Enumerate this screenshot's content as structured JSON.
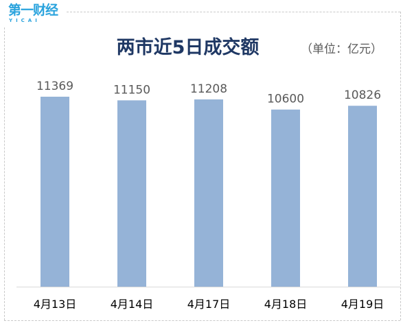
{
  "logo": {
    "text": "第一财经",
    "subtext": "YICAI"
  },
  "unit": "（单位：亿元）",
  "colors": {
    "bar": "#95b3d7",
    "title": "#1f3864",
    "label": "#595959",
    "logo": "#2aa3dd"
  },
  "chart_data": {
    "type": "bar",
    "title": "两市近5日成交额",
    "xlabel": "",
    "ylabel": "",
    "unit": "亿元",
    "categories": [
      "4月13日",
      "4月14日",
      "4月17日",
      "4月18日",
      "4月19日"
    ],
    "values": [
      11369,
      11150,
      11208,
      10600,
      10826
    ],
    "data_labels": [
      "11369",
      "11150",
      "11208",
      "10600",
      "10826"
    ],
    "ylim": [
      0,
      11369
    ],
    "grid": false,
    "legend": "none"
  }
}
